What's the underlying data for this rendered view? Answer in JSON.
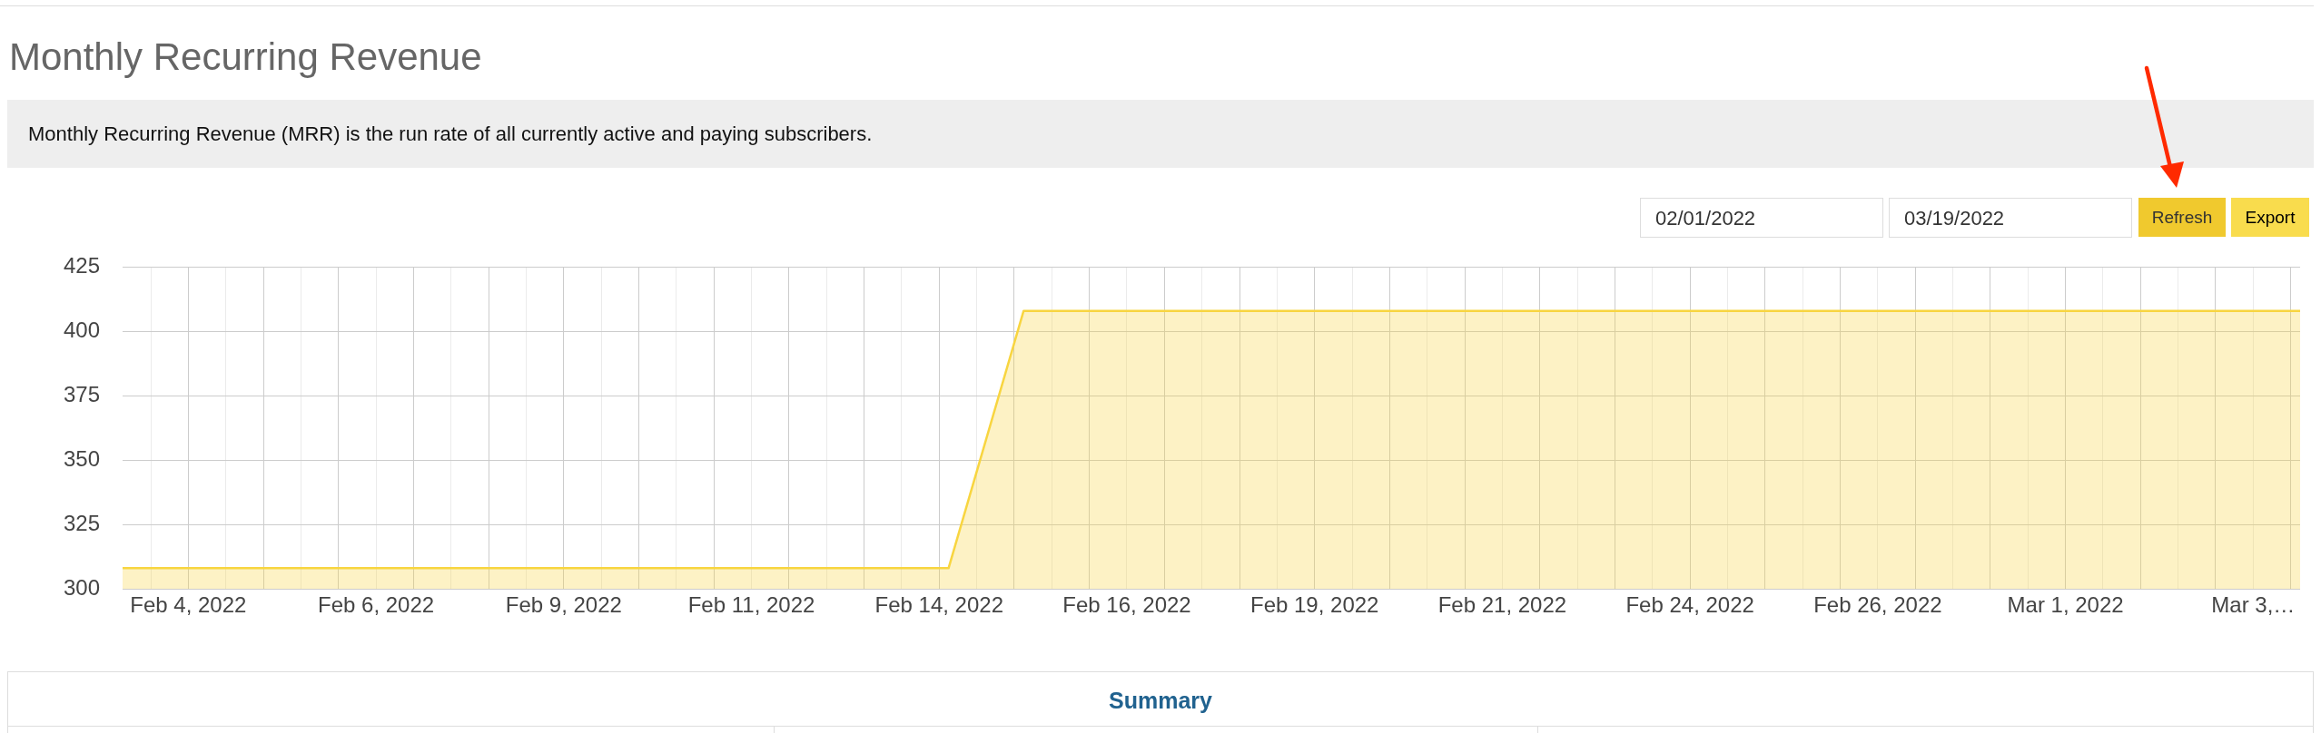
{
  "chart_data": {
    "type": "area",
    "title": "Monthly Recurring Revenue",
    "subtitle": "Monthly Recurring Revenue (MRR) is the run rate of all currently active and paying subscribers.",
    "annotations": [
      "02/01/2022",
      "03/19/2022",
      "Refresh",
      "Export",
      "Summary"
    ],
    "x": [
      "2022-02-03T03:00",
      "2022-02-04T03:00",
      "2022-02-05T03:00",
      "2022-02-06T03:00",
      "2022-02-07T03:00",
      "2022-02-08T03:00",
      "2022-02-09T03:00",
      "2022-02-10T03:00",
      "2022-02-11T03:00",
      "2022-02-12T03:00",
      "2022-02-13T03:00",
      "2022-02-14T03:00",
      "2022-02-15T03:00",
      "2022-02-16T03:00",
      "2022-02-17T03:00",
      "2022-02-18T03:00",
      "2022-02-19T03:00",
      "2022-02-20T03:00",
      "2022-02-21T03:00",
      "2022-02-22T03:00",
      "2022-02-23T03:00",
      "2022-02-24T03:00",
      "2022-02-25T03:00",
      "2022-02-26T03:00",
      "2022-02-27T03:00",
      "2022-02-28T03:00",
      "2022-03-01T03:00",
      "2022-03-02T03:00",
      "2022-03-03T03:00",
      "2022-03-04T03:00"
    ],
    "values": [
      308,
      308,
      308,
      308,
      308,
      308,
      308,
      308,
      308,
      308,
      308,
      308,
      408,
      408,
      408,
      408,
      408,
      408,
      408,
      408,
      408,
      408,
      408,
      408,
      408,
      408,
      408,
      408,
      408,
      408
    ],
    "color": "#f8d540",
    "xlim": [
      "2022-02-03T03:00",
      "2022-03-04T03:00"
    ],
    "xticks": [
      {
        "value": "2022-02-03T12:00",
        "label": null
      },
      {
        "value": "2022-02-04T00:00",
        "label": "Feb 4, 2022"
      },
      {
        "value": "2022-02-04T12:00",
        "label": null
      },
      {
        "value": "2022-02-05T00:00",
        "label": null
      },
      {
        "value": "2022-02-05T12:00",
        "label": null
      },
      {
        "value": "2022-02-06T00:00",
        "label": null
      },
      {
        "value": "2022-02-06T12:00",
        "label": "Feb 6, 2022"
      },
      {
        "value": "2022-02-07T00:00",
        "label": null
      },
      {
        "value": "2022-02-07T12:00",
        "label": null
      },
      {
        "value": "2022-02-08T00:00",
        "label": null
      },
      {
        "value": "2022-02-08T12:00",
        "label": null
      },
      {
        "value": "2022-02-09T00:00",
        "label": "Feb 9, 2022"
      },
      {
        "value": "2022-02-09T12:00",
        "label": null
      },
      {
        "value": "2022-02-10T00:00",
        "label": null
      },
      {
        "value": "2022-02-10T12:00",
        "label": null
      },
      {
        "value": "2022-02-11T00:00",
        "label": null
      },
      {
        "value": "2022-02-11T12:00",
        "label": "Feb 11, 2022"
      },
      {
        "value": "2022-02-12T00:00",
        "label": null
      },
      {
        "value": "2022-02-12T12:00",
        "label": null
      },
      {
        "value": "2022-02-13T00:00",
        "label": null
      },
      {
        "value": "2022-02-13T12:00",
        "label": null
      },
      {
        "value": "2022-02-14T00:00",
        "label": "Feb 14, 2022"
      },
      {
        "value": "2022-02-14T12:00",
        "label": null
      },
      {
        "value": "2022-02-15T00:00",
        "label": null
      },
      {
        "value": "2022-02-15T12:00",
        "label": null
      },
      {
        "value": "2022-02-16T00:00",
        "label": null
      },
      {
        "value": "2022-02-16T12:00",
        "label": "Feb 16, 2022"
      },
      {
        "value": "2022-02-17T00:00",
        "label": null
      },
      {
        "value": "2022-02-17T12:00",
        "label": null
      },
      {
        "value": "2022-02-18T00:00",
        "label": null
      },
      {
        "value": "2022-02-18T12:00",
        "label": null
      },
      {
        "value": "2022-02-19T00:00",
        "label": "Feb 19, 2022"
      },
      {
        "value": "2022-02-19T12:00",
        "label": null
      },
      {
        "value": "2022-02-20T00:00",
        "label": null
      },
      {
        "value": "2022-02-20T12:00",
        "label": null
      },
      {
        "value": "2022-02-21T00:00",
        "label": null
      },
      {
        "value": "2022-02-21T12:00",
        "label": "Feb 21, 2022"
      },
      {
        "value": "2022-02-22T00:00",
        "label": null
      },
      {
        "value": "2022-02-22T12:00",
        "label": null
      },
      {
        "value": "2022-02-23T00:00",
        "label": null
      },
      {
        "value": "2022-02-23T12:00",
        "label": null
      },
      {
        "value": "2022-02-24T00:00",
        "label": "Feb 24, 2022"
      },
      {
        "value": "2022-02-24T12:00",
        "label": null
      },
      {
        "value": "2022-02-25T00:00",
        "label": null
      },
      {
        "value": "2022-02-25T12:00",
        "label": null
      },
      {
        "value": "2022-02-26T00:00",
        "label": null
      },
      {
        "value": "2022-02-26T12:00",
        "label": "Feb 26, 2022"
      },
      {
        "value": "2022-02-27T00:00",
        "label": null
      },
      {
        "value": "2022-02-27T12:00",
        "label": null
      },
      {
        "value": "2022-02-28T00:00",
        "label": null
      },
      {
        "value": "2022-02-28T12:00",
        "label": null
      },
      {
        "value": "2022-03-01T00:00",
        "label": "Mar 1, 2022"
      },
      {
        "value": "2022-03-01T12:00",
        "label": null
      },
      {
        "value": "2022-03-02T00:00",
        "label": null
      },
      {
        "value": "2022-03-02T12:00",
        "label": null
      },
      {
        "value": "2022-03-03T00:00",
        "label": null
      },
      {
        "value": "2022-03-03T12:00",
        "label": "Mar 3,…"
      },
      {
        "value": "2022-03-04T00:00",
        "label": null
      }
    ],
    "ylim": [
      300,
      425
    ],
    "yticks": [
      300,
      325,
      350,
      375,
      400,
      425
    ],
    "grid": true,
    "legend": false,
    "marker": "none"
  }
}
